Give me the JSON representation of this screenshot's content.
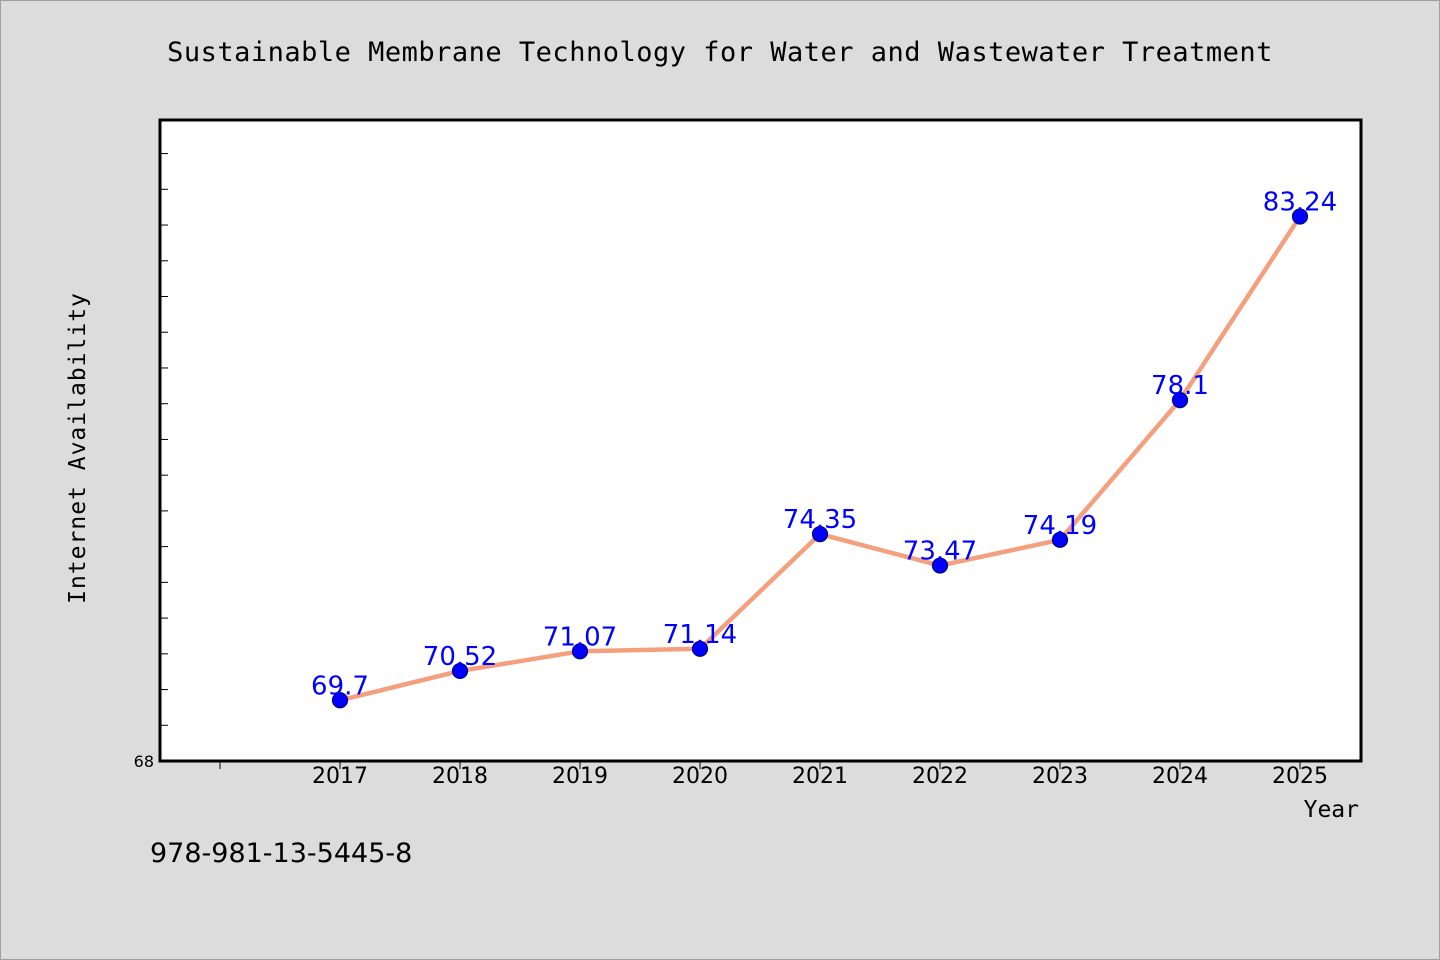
{
  "chart_data": {
    "type": "line",
    "title": "Sustainable Membrane Technology for Water and Wastewater Treatment",
    "xlabel": "Year",
    "ylabel": "Internet Availability",
    "categories": [
      "2017",
      "2018",
      "2019",
      "2020",
      "2021",
      "2022",
      "2023",
      "2024",
      "2025"
    ],
    "values": [
      69.7,
      70.52,
      71.07,
      71.14,
      74.35,
      73.47,
      74.19,
      78.1,
      83.24
    ],
    "data_labels": [
      "69.7",
      "70.52",
      "71.07",
      "71.14",
      "74.35",
      "73.47",
      "74.19",
      "78.1",
      "83.24"
    ],
    "ylim": [
      68,
      85.94
    ],
    "y_tick_labels": [
      "68"
    ],
    "grid": false,
    "legend": "none",
    "colors": {
      "line": "#f4a07f",
      "marker_fill": "#0000ff",
      "marker_edge": "#000080",
      "data_label": "#0000ff",
      "background": "#dcdcdc",
      "plot_background": "#ffffff"
    }
  },
  "footer": {
    "isbn": "978-981-13-5445-8"
  }
}
